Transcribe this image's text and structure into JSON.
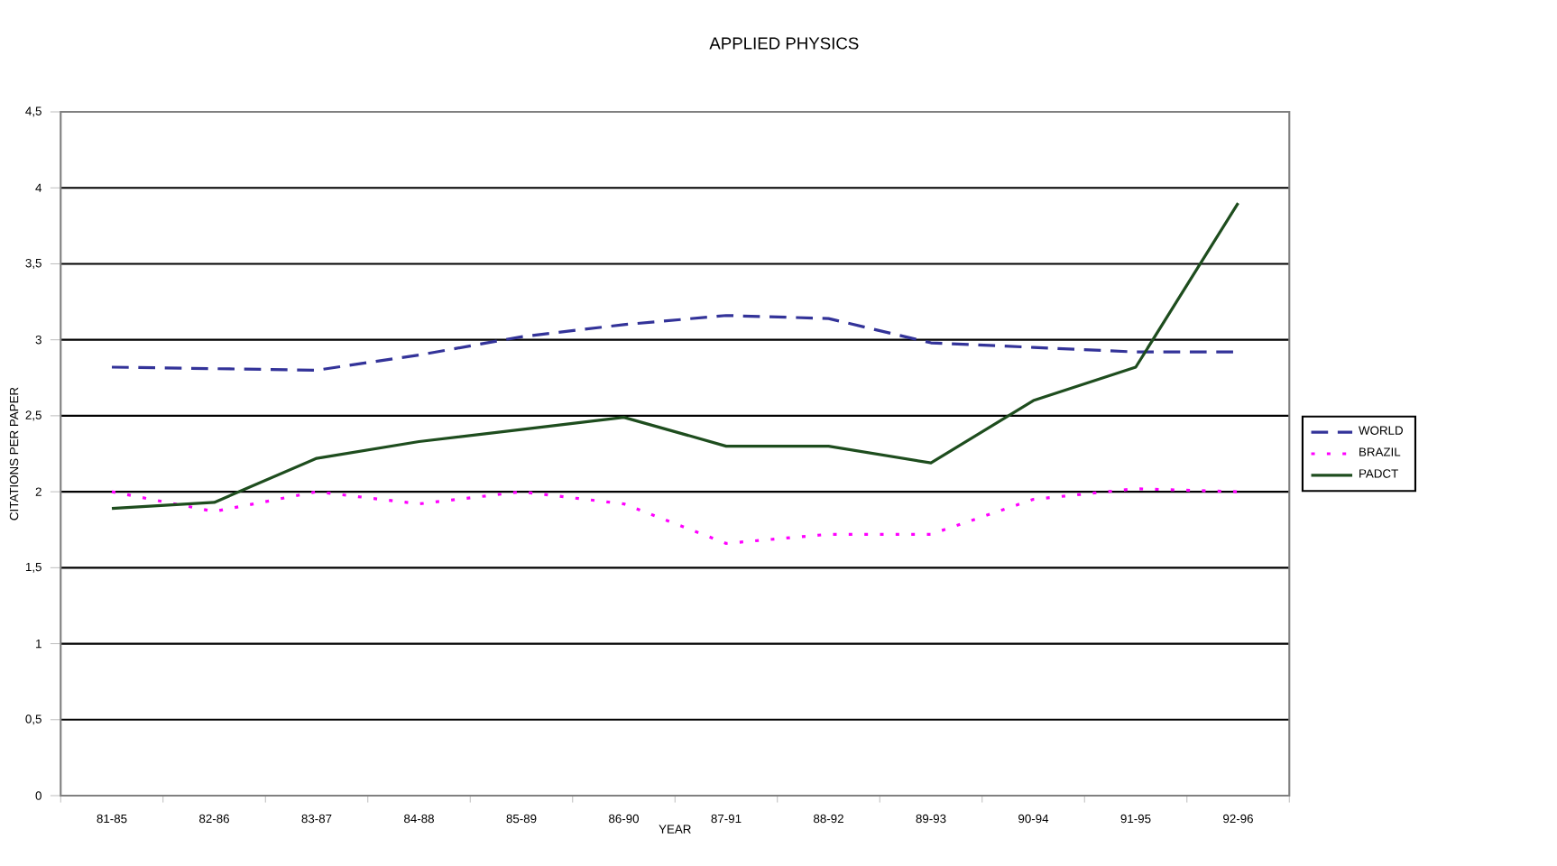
{
  "chart_data": {
    "type": "line",
    "title": "APPLIED PHYSICS",
    "xlabel": "YEAR",
    "ylabel": "CITATIONS PER PAPER",
    "categories": [
      "81-85",
      "82-86",
      "83-87",
      "84-88",
      "85-89",
      "86-90",
      "87-91",
      "88-92",
      "89-93",
      "90-94",
      "91-95",
      "92-96"
    ],
    "series": [
      {
        "name": "WORLD",
        "color": "#333399",
        "line_style": "dashed",
        "values": [
          2.82,
          2.81,
          2.8,
          2.9,
          3.02,
          3.1,
          3.16,
          3.14,
          2.98,
          2.95,
          2.92,
          2.92
        ]
      },
      {
        "name": "BRAZIL",
        "color": "#ff00ff",
        "line_style": "dotted",
        "values": [
          2.0,
          1.87,
          2.0,
          1.92,
          2.0,
          1.92,
          1.66,
          1.72,
          1.72,
          1.95,
          2.02,
          2.0
        ]
      },
      {
        "name": "PADCT",
        "color": "#1e4d1e",
        "line_style": "solid",
        "values": [
          1.89,
          1.93,
          2.22,
          2.33,
          2.41,
          2.49,
          2.3,
          2.3,
          2.19,
          2.6,
          2.82,
          3.9
        ]
      }
    ],
    "ylim": [
      0,
      4.5
    ],
    "yticks": [
      0,
      {
        "value": 0.5,
        "label": "0,5"
      },
      1,
      {
        "value": 1.5,
        "label": "1,5"
      },
      2,
      {
        "value": 2.5,
        "label": "2,5"
      },
      3,
      {
        "value": 3.5,
        "label": "3,5"
      },
      4,
      {
        "value": 4.5,
        "label": "4,5"
      }
    ],
    "grid": "y",
    "legend": "right",
    "marker": "none"
  }
}
